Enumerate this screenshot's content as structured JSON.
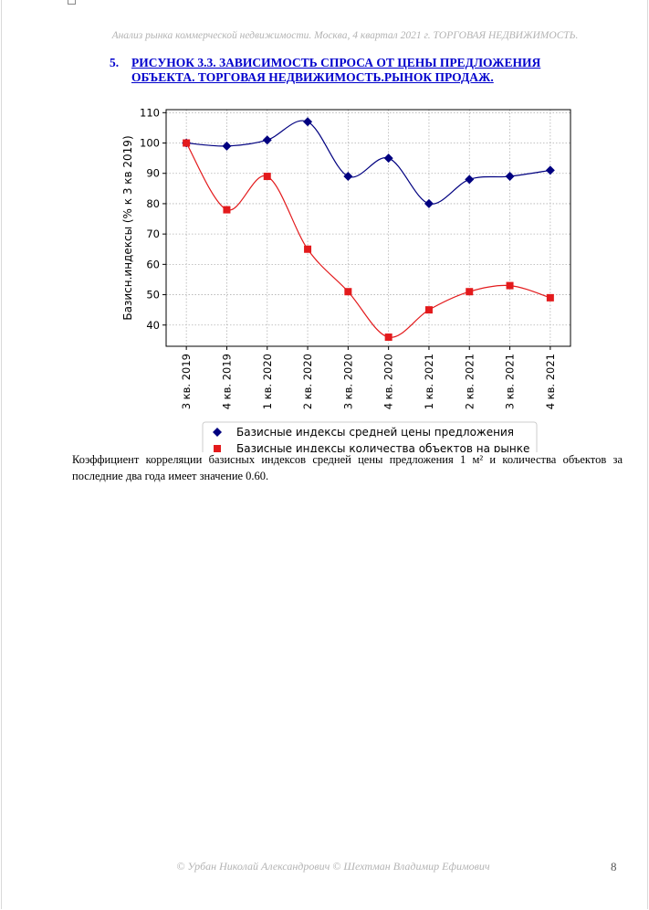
{
  "header": {
    "running_title": "Анализ рынка коммерческой недвижимости.   Москва,  4 квартал 2021 г.   ТОРГОВАЯ НЕДВИЖИМОСТЬ."
  },
  "figure": {
    "number": "5.",
    "caption_line1": "РИСУНОК 3.3. ЗАВИСИМОСТЬ СПРОСА ОТ ЦЕНЫ ПРЕДЛОЖЕНИЯ",
    "caption_line2": "ОБЪЕКТА.  ТОРГОВАЯ НЕДВИЖИМОСТЬ.РЫНОК ПРОДАЖ."
  },
  "chart_data": {
    "type": "line",
    "title": "",
    "xlabel": "",
    "ylabel": "Базисн.индексы (% к 3 кв 2019)",
    "categories": [
      "3 кв. 2019",
      "4 кв. 2019",
      "1 кв. 2020",
      "2 кв. 2020",
      "3 кв. 2020",
      "4 кв. 2020",
      "1 кв. 2021",
      "2 кв. 2021",
      "3 кв. 2021",
      "4 кв. 2021"
    ],
    "ylim": [
      33,
      111
    ],
    "yticks": [
      40,
      50,
      60,
      70,
      80,
      90,
      100,
      110
    ],
    "grid": true,
    "legend_position": "bottom",
    "series": [
      {
        "name": "Базисные индексы средней цены предложения",
        "values": [
          100,
          99,
          101,
          107,
          89,
          95,
          80,
          88,
          89,
          91
        ],
        "color": "#000080",
        "marker": "diamond"
      },
      {
        "name": "Базисные индексы количества объектов на рынке",
        "values": [
          100,
          78,
          89,
          65,
          51,
          36,
          45,
          51,
          53,
          49
        ],
        "color": "#e31a1c",
        "marker": "square"
      }
    ]
  },
  "body": {
    "paragraph": "Коэффициент корреляции базисных индексов средней цены предложения 1 м² и количества объектов за последние два года имеет значение 0.60."
  },
  "footer": {
    "copyright": "© Урбан Николай Александрович   © Шехтман Владимир Ефимович",
    "page_number": "8"
  }
}
